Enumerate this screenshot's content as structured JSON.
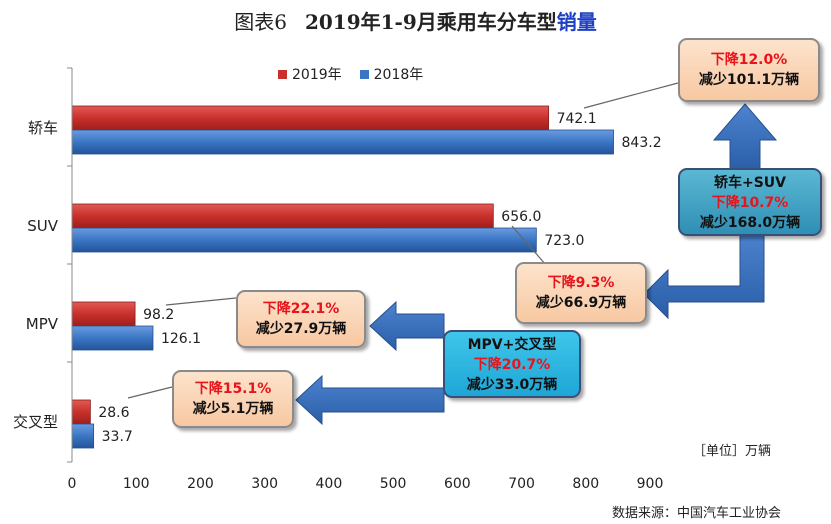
{
  "title": {
    "prefix": "图表6",
    "main": "2019年1-9月乘用车分车型",
    "accent": "销量"
  },
  "legend": [
    {
      "label": "2019年",
      "color": "#c9302c"
    },
    {
      "label": "2018年",
      "color": "#3b76c4"
    }
  ],
  "unit": "［单位］万辆",
  "source": "数据来源：中国汽车工业协会",
  "callouts": {
    "sedan": {
      "line1": "下降12.0%",
      "line2": "减少101.1万辆"
    },
    "sedan_suv": {
      "line0": "轿车+SUV",
      "line1": "下降10.7%",
      "line2": "减少168.0万辆"
    },
    "suv": {
      "line1": "下降9.3%",
      "line2": "减少66.9万辆"
    },
    "mpv": {
      "line1": "下降22.1%",
      "line2": "减少27.9万辆"
    },
    "mpv_cross": {
      "line0": "MPV+交叉型",
      "line1": "下降20.7%",
      "line2": "减少33.0万辆"
    },
    "cross": {
      "line1": "下降15.1%",
      "line2": "减少5.1万辆"
    }
  },
  "chart_data": {
    "type": "bar",
    "orientation": "horizontal",
    "categories": [
      "轿车",
      "SUV",
      "MPV",
      "交叉型"
    ],
    "series": [
      {
        "name": "2019年",
        "values": [
          742.1,
          656.0,
          98.2,
          28.6
        ],
        "color": "#c9302c"
      },
      {
        "name": "2018年",
        "values": [
          843.2,
          723.0,
          126.1,
          33.7
        ],
        "color": "#3b76c4"
      }
    ],
    "value_labels": [
      [
        "742.1",
        "656.0",
        "98.2",
        "28.6"
      ],
      [
        "843.2",
        "723.0",
        "126.1",
        "33.7"
      ]
    ],
    "xlim": [
      0,
      900
    ],
    "xticks": [
      0,
      100,
      200,
      300,
      400,
      500,
      600,
      700,
      800,
      900
    ],
    "grid": false,
    "legend_position": "top"
  }
}
